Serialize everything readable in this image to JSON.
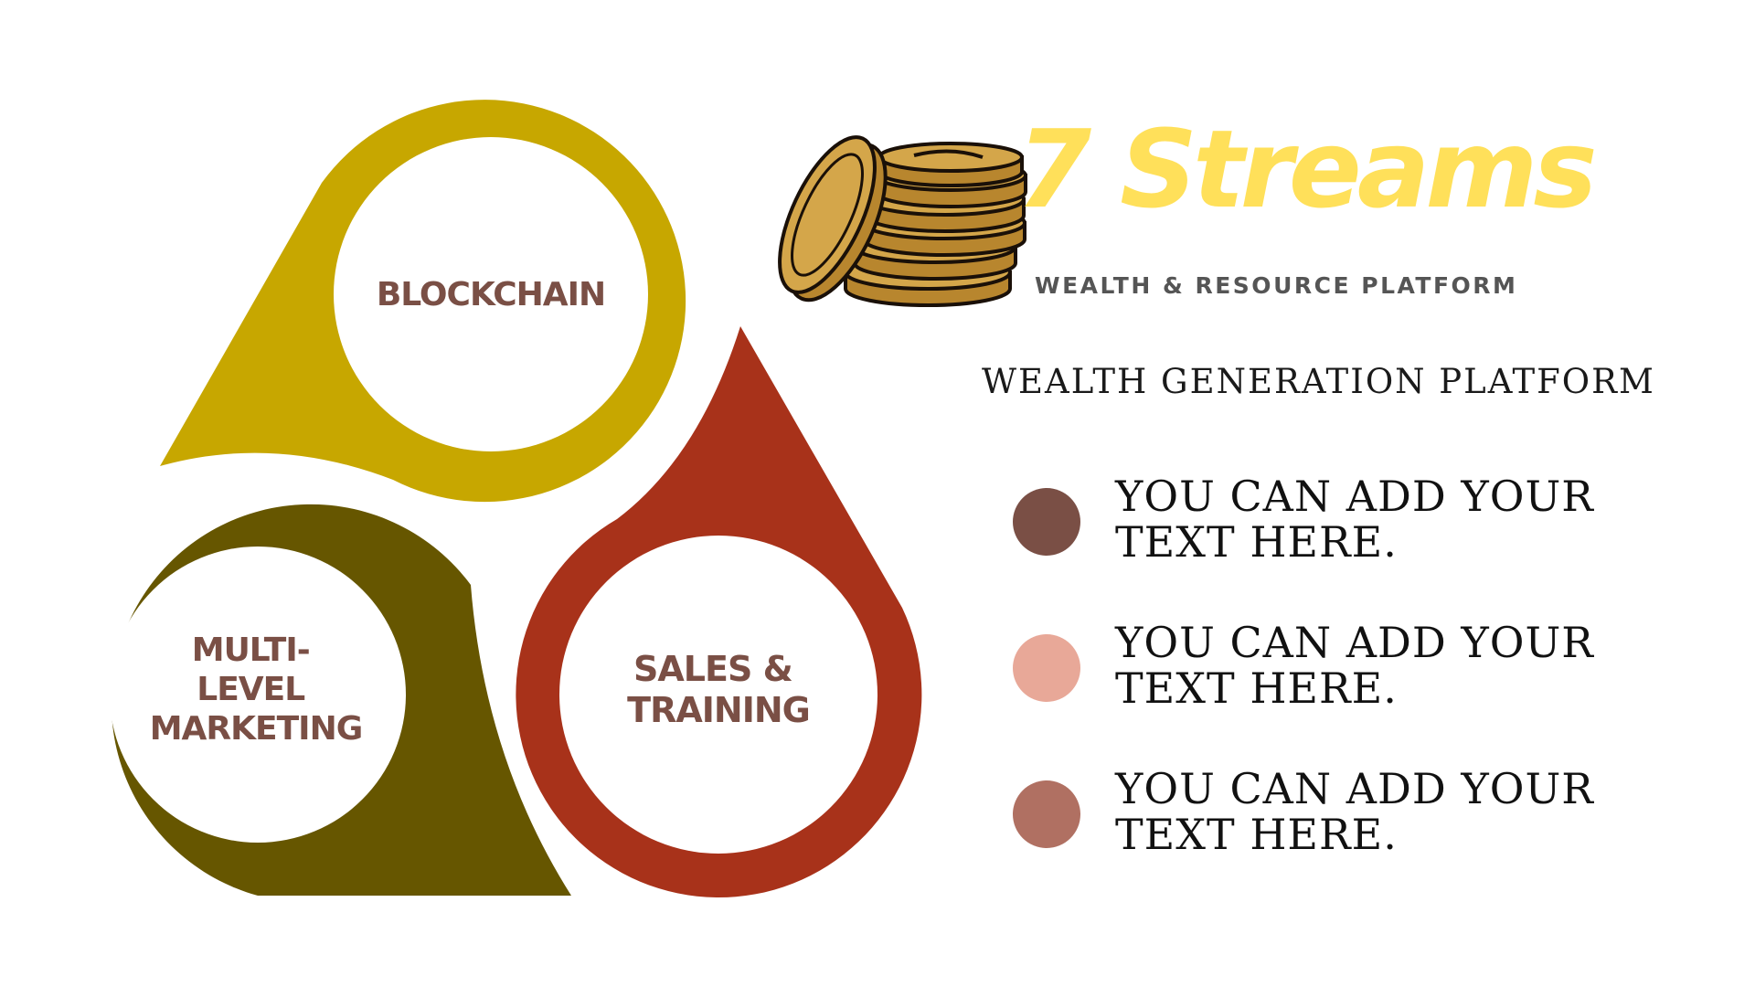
{
  "colors": {
    "petal_top": "#c7a700",
    "petal_left": "#665600",
    "petal_right": "#a8321a",
    "label_text": "#7a4f45",
    "brand_title": "#ffe05a",
    "coin_fill": "#d4a64a",
    "coin_shade": "#b8862e",
    "coin_outline": "#1a1008"
  },
  "diagram": {
    "blockchain": {
      "lines": [
        "BLOCKCHAIN"
      ]
    },
    "mlm": {
      "lines": [
        "MULTI-",
        "LEVEL",
        "MARKETING"
      ]
    },
    "sales": {
      "lines": [
        "SALES &",
        "TRAINING"
      ]
    }
  },
  "brand": {
    "logo_icon": "coin-stack-icon",
    "title": "7 Streams",
    "subtitle": "WEALTH & RESOURCE PLATFORM"
  },
  "section": {
    "heading": "WEALTH GENERATION PLATFORM"
  },
  "bullets": [
    {
      "text": "YOU CAN ADD YOUR TEXT HERE.",
      "color": "#7a4f45"
    },
    {
      "text": "YOU CAN ADD YOUR TEXT HERE.",
      "color": "#e8a898"
    },
    {
      "text": "YOU CAN ADD YOUR TEXT HERE.",
      "color": "#b07062"
    }
  ]
}
